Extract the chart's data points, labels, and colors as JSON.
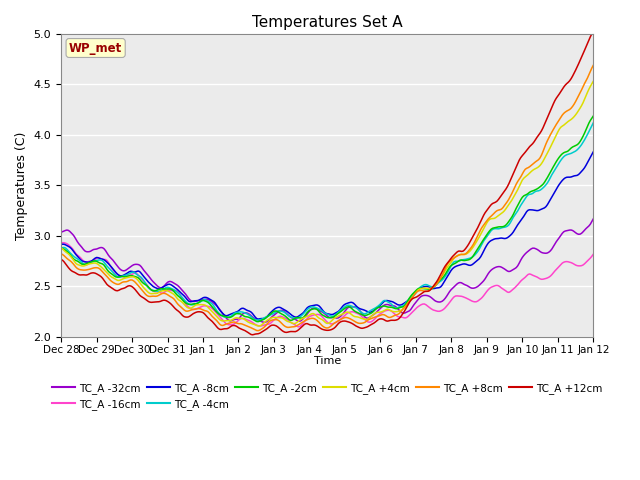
{
  "title": "Temperatures Set A",
  "xlabel": "Time",
  "ylabel": "Temperatures (C)",
  "ylim": [
    2.0,
    5.0
  ],
  "yticks": [
    2.0,
    2.5,
    3.0,
    3.5,
    4.0,
    4.5,
    5.0
  ],
  "x_labels": [
    "Dec 28",
    "Dec 29",
    "Dec 30",
    "Dec 31",
    "Jan 1",
    "Jan 2",
    "Jan 3",
    "Jan 4",
    "Jan 5",
    "Jan 6",
    "Jan 7",
    "Jan 8",
    "Jan 9",
    "Jan 10",
    "Jan 11",
    "Jan 12"
  ],
  "wp_met_box_color": "#ffffcc",
  "wp_met_text_color": "#990000",
  "background_color": "#ebebeb",
  "grid_color": "#ffffff",
  "series": [
    {
      "label": "TC_A -32cm",
      "color": "#9900cc",
      "lw": 1.1
    },
    {
      "label": "TC_A -16cm",
      "color": "#ff44cc",
      "lw": 1.1
    },
    {
      "label": "TC_A -8cm",
      "color": "#0000dd",
      "lw": 1.1
    },
    {
      "label": "TC_A -4cm",
      "color": "#00cccc",
      "lw": 1.1
    },
    {
      "label": "TC_A -2cm",
      "color": "#00cc00",
      "lw": 1.1
    },
    {
      "label": "TC_A +4cm",
      "color": "#dddd00",
      "lw": 1.1
    },
    {
      "label": "TC_A +8cm",
      "color": "#ff8800",
      "lw": 1.1
    },
    {
      "label": "TC_A +12cm",
      "color": "#cc0000",
      "lw": 1.1
    }
  ]
}
